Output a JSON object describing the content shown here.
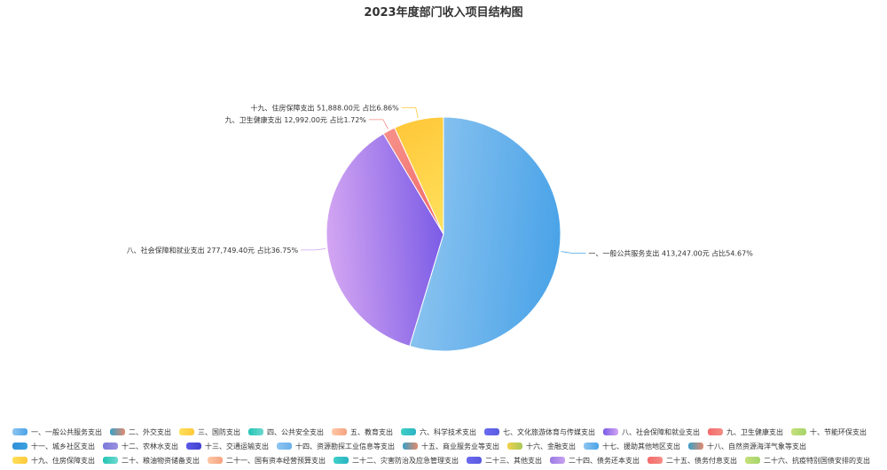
{
  "chart_data": {
    "type": "pie",
    "title": "2023年度部门收入项目结构图",
    "slices": [
      {
        "name": "一、一般公共服务支出",
        "value": 413247.0,
        "percent": 54.67,
        "label": "一、一般公共服务支出 413,247.00元 占比54.67%",
        "color_from": "#8ec5f0",
        "color_to": "#4aa3e8"
      },
      {
        "name": "八、社会保障和就业支出",
        "value": 277749.4,
        "percent": 36.75,
        "label": "八、社会保障和就业支出 277,749.40元 占比36.75%",
        "color_from": "#7b5ce6",
        "color_to": "#d4a6f2"
      },
      {
        "name": "九、卫生健康支出",
        "value": 12992.0,
        "percent": 1.72,
        "label": "九、卫生健康支出 12,992.00元 占比1.72%",
        "color_from": "#f36b6b",
        "color_to": "#f58d86"
      },
      {
        "name": "十九、住房保障支出",
        "value": 51888.0,
        "percent": 6.86,
        "label": "十九、住房保障支出 51,888.00元 占比6.86%",
        "color_from": "#ffe05a",
        "color_to": "#ffc83a"
      }
    ],
    "legend_position": "bottom",
    "legend": [
      {
        "label": "一、一般公共服务支出",
        "from": "#8ec5f0",
        "to": "#4aa3e8"
      },
      {
        "label": "二、外交支出",
        "from": "#3aa0c8",
        "to": "#e38a6d"
      },
      {
        "label": "三、国防支出",
        "from": "#ffe05a",
        "to": "#ffc83a"
      },
      {
        "label": "四、公共安全支出",
        "from": "#23c4b4",
        "to": "#6fd9d0"
      },
      {
        "label": "五、教育支出",
        "from": "#ffc9a8",
        "to": "#f5a27e"
      },
      {
        "label": "六、科学技术支出",
        "from": "#3fd0c6",
        "to": "#2ab3c4"
      },
      {
        "label": "七、文化旅游体育与传媒支出",
        "from": "#6a6af0",
        "to": "#5b5be0"
      },
      {
        "label": "八、社会保障和就业支出",
        "from": "#7b5ce6",
        "to": "#d4a6f2"
      },
      {
        "label": "九、卫生健康支出",
        "from": "#f36b6b",
        "to": "#f58d86"
      },
      {
        "label": "十、节能环保支出",
        "from": "#c5e07c",
        "to": "#a6d46a"
      },
      {
        "label": "十一、城乡社区支出",
        "from": "#2f8fd8",
        "to": "#3aa2e0"
      },
      {
        "label": "十二、农林水支出",
        "from": "#7b7bd9",
        "to": "#9a8fe0"
      },
      {
        "label": "十三、交通运输支出",
        "from": "#5a5ae8",
        "to": "#4040d0"
      },
      {
        "label": "十四、资源勘探工业信息等支出",
        "from": "#8ec5f0",
        "to": "#6ab0ea"
      },
      {
        "label": "十五、商业服务业等支出",
        "from": "#3aa0c8",
        "to": "#e38a6d"
      },
      {
        "label": "十六、金融支出",
        "from": "#f2d04a",
        "to": "#a8c95a"
      },
      {
        "label": "十七、援助其他地区支出",
        "from": "#8ec5f0",
        "to": "#4aa3e8"
      },
      {
        "label": "十八、自然资源海洋气象等支出",
        "from": "#3aa0c8",
        "to": "#e38a6d"
      },
      {
        "label": "十九、住房保障支出",
        "from": "#ffe05a",
        "to": "#ffc83a"
      },
      {
        "label": "二十、粮油物资储备支出",
        "from": "#23c4b4",
        "to": "#6fd9d0"
      },
      {
        "label": "二十一、国有资本经营预算支出",
        "from": "#ffc9a8",
        "to": "#f5a27e"
      },
      {
        "label": "二十二、灾害防治及应急管理支出",
        "from": "#3fd0c6",
        "to": "#2ab3c4"
      },
      {
        "label": "二十三、其他支出",
        "from": "#6a6af0",
        "to": "#5b5be0"
      },
      {
        "label": "二十四、债务还本支出",
        "from": "#9a7be6",
        "to": "#c7a2ee"
      },
      {
        "label": "二十五、债务付息支出",
        "from": "#f36b6b",
        "to": "#f58d86"
      },
      {
        "label": "二十六、抗疫特别国债安排的支出",
        "from": "#c5e07c",
        "to": "#a6d46a"
      }
    ]
  }
}
